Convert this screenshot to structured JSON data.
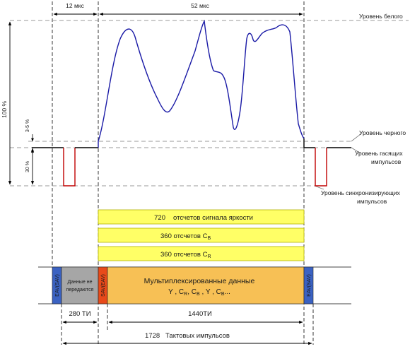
{
  "timing": {
    "sync_duration": "12 мкс",
    "active_duration": "52 мкс",
    "blank_samples": "280 ТИ",
    "active_samples": "1440ТИ",
    "total_samples": "1728   Тактовых импульсов"
  },
  "levels": {
    "white": "Уровень белого",
    "black": "Уровень черного",
    "blank_line1": "Уровень гасящих",
    "blank_line2": "импульсов",
    "sync_line1": "Уровень синхронизирующих",
    "sync_line2": "импульсов"
  },
  "amplitude": {
    "full": "100 %",
    "setup": "3-5 %",
    "sync": "30 %"
  },
  "bars": {
    "luma_count": "720",
    "luma_text": "отсчетов сигнала яркости",
    "cb_text": "360 отсчетов C",
    "cb_sub": "B",
    "cr_text": "360 отсчетов C",
    "cr_sub": "R"
  },
  "stream": {
    "eav": "EAV(SAV)",
    "sav": "SAV(EAV)",
    "blank_line1": "Данные не",
    "blank_line2": "передаются",
    "mux_line1": "Мультиплексированные данные",
    "mux_y": "Y ,",
    "mux_c": "C",
    "mux_r": "R",
    "mux_b": "B",
    "mux_tail": "...",
    "mux_comma": ", ",
    "mux_ysep": " , Y ,"
  },
  "colors": {
    "signal": "#1a1aa6",
    "sync_pulse": "#c00000",
    "sample_bar": "#ffff66",
    "timing_ref": "#3b62c2",
    "blank_data": "#a6a6a6",
    "sav": "#e84a1a",
    "mux": "#f7c055"
  }
}
